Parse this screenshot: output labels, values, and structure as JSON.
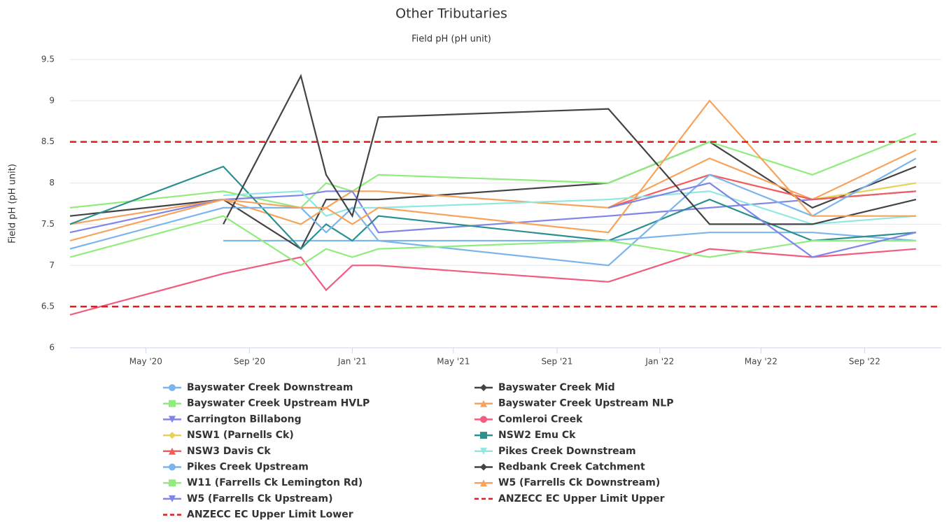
{
  "chart_data": {
    "type": "line",
    "title": "Other Tributaries",
    "subtitle": "Field pH (pH unit)",
    "y_label": "Field pH (pH unit)",
    "x": [
      "2020-02",
      "2020-08",
      "2020-11",
      "2020-12",
      "2021-01",
      "2021-02",
      "2021-11",
      "2022-03",
      "2022-07",
      "2022-11"
    ],
    "xlim": [
      "2020-02",
      "2022-12"
    ],
    "xticks": [
      {
        "value": "2020-05",
        "label": "May '20"
      },
      {
        "value": "2020-09",
        "label": "Sep '20"
      },
      {
        "value": "2021-01",
        "label": "Jan '21"
      },
      {
        "value": "2021-05",
        "label": "May '21"
      },
      {
        "value": "2021-09",
        "label": "Sep '21"
      },
      {
        "value": "2022-01",
        "label": "Jan '22"
      },
      {
        "value": "2022-05",
        "label": "May '22"
      },
      {
        "value": "2022-09",
        "label": "Sep '22"
      }
    ],
    "ylim": [
      6,
      9.5
    ],
    "yticks": [
      6,
      6.5,
      7,
      7.5,
      8,
      8.5,
      9,
      9.5
    ],
    "grid": true,
    "series": [
      {
        "name": "Bayswater Creek Downstream",
        "color": "#7cb5ec",
        "marker": "circle",
        "values": [
          null,
          7.3,
          7.3,
          7.3,
          7.3,
          7.3,
          7.3,
          7.4,
          7.4,
          7.3
        ]
      },
      {
        "name": "Bayswater Creek Mid",
        "color": "#434348",
        "marker": "diamond",
        "values": [
          7.6,
          7.8,
          7.2,
          7.8,
          7.8,
          7.8,
          8.0,
          8.5,
          7.7,
          8.2
        ]
      },
      {
        "name": "Bayswater Creek Upstream HVLP",
        "color": "#90ed7d",
        "marker": "square",
        "values": [
          7.7,
          7.9,
          7.7,
          8.0,
          7.9,
          8.1,
          8.0,
          8.5,
          8.1,
          8.6
        ]
      },
      {
        "name": "Bayswater Creek Upstream NLP",
        "color": "#f7a35c",
        "marker": "triangle",
        "values": [
          7.5,
          7.8,
          7.5,
          7.7,
          7.9,
          7.9,
          7.7,
          8.3,
          7.8,
          8.4
        ]
      },
      {
        "name": "Carrington Billabong",
        "color": "#8085e9",
        "marker": "triangle-down",
        "values": [
          7.4,
          7.8,
          7.85,
          7.9,
          7.9,
          7.4,
          7.6,
          7.7,
          7.8,
          7.9
        ]
      },
      {
        "name": "Comleroi Creek",
        "color": "#f15c80",
        "marker": "circle",
        "values": [
          6.4,
          6.9,
          7.1,
          6.7,
          7.0,
          7.0,
          6.8,
          7.2,
          7.1,
          7.2
        ]
      },
      {
        "name": "NSW1 (Parnells Ck)",
        "color": "#e4d354",
        "marker": "diamond",
        "values": [
          null,
          null,
          null,
          null,
          null,
          null,
          null,
          null,
          7.8,
          8.0
        ]
      },
      {
        "name": "NSW2 Emu Ck",
        "color": "#2b908f",
        "marker": "square",
        "values": [
          7.5,
          8.2,
          7.2,
          7.5,
          7.3,
          7.6,
          7.3,
          7.8,
          7.3,
          7.4
        ]
      },
      {
        "name": "NSW3 Davis Ck",
        "color": "#f45b5b",
        "marker": "triangle",
        "values": [
          null,
          null,
          null,
          null,
          null,
          null,
          7.7,
          8.1,
          7.8,
          7.9
        ]
      },
      {
        "name": "Pikes Creek Downstream",
        "color": "#91e8e1",
        "marker": "triangle-down",
        "values": [
          null,
          7.85,
          7.9,
          7.6,
          7.7,
          7.7,
          7.8,
          7.9,
          7.5,
          7.6
        ]
      },
      {
        "name": "Pikes Creek Upstream",
        "color": "#7cb5ec",
        "marker": "circle",
        "values": [
          7.2,
          7.7,
          7.7,
          7.4,
          7.7,
          7.3,
          7.0,
          8.1,
          7.6,
          8.3
        ]
      },
      {
        "name": "Redbank Creek Catchment",
        "color": "#434348",
        "marker": "diamond",
        "values": [
          null,
          7.5,
          9.3,
          8.1,
          7.6,
          8.8,
          8.9,
          7.5,
          7.5,
          7.8
        ]
      },
      {
        "name": "W11 (Farrells Ck Lemington Rd)",
        "color": "#90ed7d",
        "marker": "square",
        "values": [
          7.1,
          7.6,
          7.0,
          7.2,
          7.1,
          7.2,
          7.3,
          7.1,
          7.3,
          7.3
        ]
      },
      {
        "name": "W5 (Farrells Ck Downstream)",
        "color": "#f7a35c",
        "marker": "triangle",
        "values": [
          7.3,
          7.8,
          7.7,
          7.7,
          7.5,
          7.7,
          7.4,
          9.0,
          7.6,
          7.6
        ]
      },
      {
        "name": "W5 (Farrells Ck Upstream)",
        "color": "#8085e9",
        "marker": "triangle-down",
        "values": [
          null,
          7.8,
          null,
          null,
          null,
          null,
          7.7,
          8.0,
          7.1,
          7.4
        ]
      }
    ],
    "reference_lines": [
      {
        "name": "ANZECC EC Upper Limit Upper",
        "color": "#e41a1c",
        "value": 8.5
      },
      {
        "name": "ANZECC EC Upper Limit Lower",
        "color": "#e41a1c",
        "value": 6.5
      }
    ]
  }
}
